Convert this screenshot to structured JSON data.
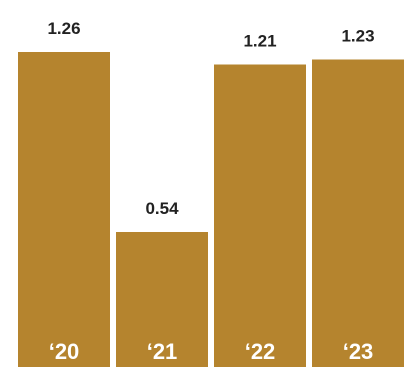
{
  "chart_data": {
    "type": "bar",
    "categories": [
      "‘20",
      "‘21",
      "‘22",
      "‘23"
    ],
    "values": [
      1.26,
      0.54,
      1.21,
      1.23
    ],
    "value_labels": [
      "1.26",
      "0.54",
      "1.21",
      "1.23"
    ],
    "title": "",
    "xlabel": "",
    "ylabel": "",
    "ylim": [
      0,
      1.26
    ],
    "grid": false,
    "legend": "none",
    "category_label_position": "inside-bottom",
    "value_label_position": "above-bar"
  },
  "colors": {
    "bar": "#b5842e",
    "value_text": "#222222",
    "category_text": "#ffffff",
    "background": "#ffffff"
  }
}
